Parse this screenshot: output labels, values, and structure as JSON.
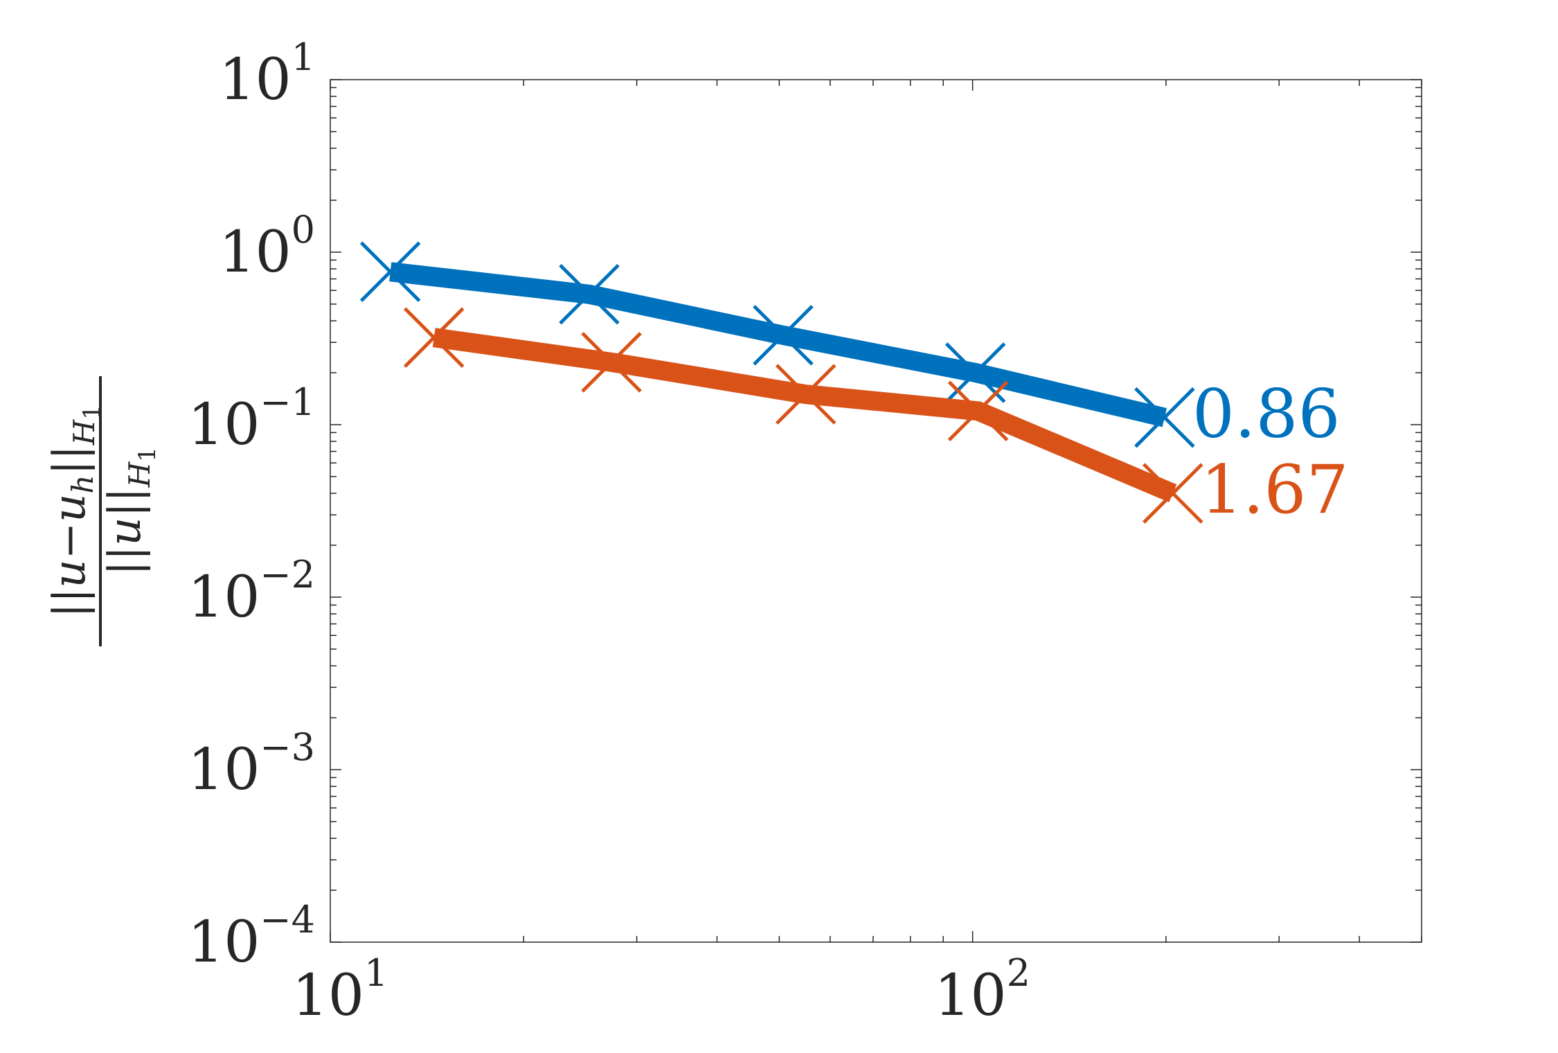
{
  "chart_data": {
    "type": "line",
    "xscale": "log",
    "yscale": "log",
    "xlim": [
      10,
      500
    ],
    "ylim": [
      0.0001,
      10
    ],
    "x_tick_labels": [
      {
        "base": "10",
        "exp": "1",
        "value": 10
      },
      {
        "base": "10",
        "exp": "2",
        "value": 100
      }
    ],
    "y_tick_labels": [
      {
        "base": "10",
        "exp": "1",
        "value": 10
      },
      {
        "base": "10",
        "exp": "0",
        "value": 1
      },
      {
        "base": "10",
        "exp": "−1",
        "value": 0.1
      },
      {
        "base": "10",
        "exp": "−2",
        "value": 0.01
      },
      {
        "base": "10",
        "exp": "−3",
        "value": 0.001
      },
      {
        "base": "10",
        "exp": "−4",
        "value": 0.0001
      }
    ],
    "ylabel": {
      "numerator": "||u−u",
      "numerator_sub": "h",
      "numerator_tail": "||",
      "numerator_norm_sub": "H",
      "numerator_norm_sub2": "1",
      "denominator": "||u||",
      "denominator_norm_sub": "H",
      "denominator_norm_sub2": "1"
    },
    "xlabel": "",
    "grid": false,
    "series": [
      {
        "color": "#0072BD",
        "x": [
          12.4,
          25.3,
          50.7,
          101,
          199
        ],
        "y": [
          0.77,
          0.57,
          0.33,
          0.2,
          0.11
        ],
        "end_label": "0.86"
      },
      {
        "color": "#D95319",
        "x": [
          14.5,
          27.4,
          55,
          102,
          205
        ],
        "y": [
          0.32,
          0.23,
          0.15,
          0.12,
          0.04
        ],
        "end_label": "1.67"
      }
    ]
  }
}
